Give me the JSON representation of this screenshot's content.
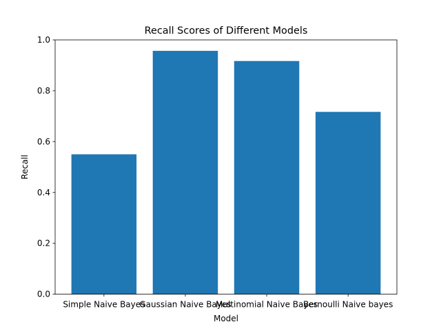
{
  "chart_data": {
    "type": "bar",
    "title": "Recall Scores of Different Models",
    "xlabel": "Model",
    "ylabel": "Recall",
    "categories": [
      "Simple Naive Bayes",
      "Gaussian Naive Bayes",
      "Multinomial Naive Bayes",
      "Bernoulli Naive bayes"
    ],
    "values": [
      0.55,
      0.957,
      0.917,
      0.717
    ],
    "ylim": [
      0,
      1.0
    ],
    "yticks": [
      "0.0",
      "0.2",
      "0.4",
      "0.6",
      "0.8",
      "1.0"
    ],
    "grid": false,
    "bar_color": "#1f77b4"
  }
}
